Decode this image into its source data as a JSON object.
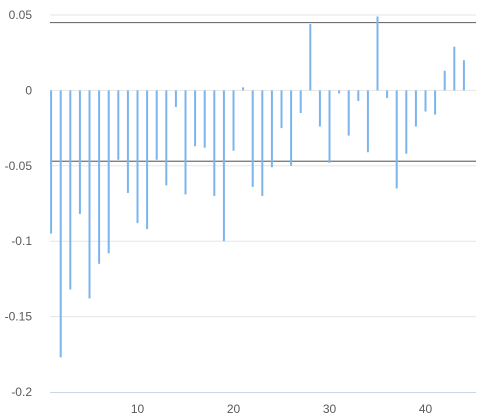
{
  "chart_data": {
    "type": "bar",
    "title": "",
    "xlabel": "",
    "ylabel": "",
    "x": [
      1,
      2,
      3,
      4,
      5,
      6,
      7,
      8,
      9,
      10,
      11,
      12,
      13,
      14,
      15,
      16,
      17,
      18,
      19,
      20,
      21,
      22,
      23,
      24,
      25,
      26,
      27,
      28,
      29,
      30,
      31,
      32,
      33,
      34,
      35,
      36,
      37,
      38,
      39,
      40,
      41,
      42,
      43,
      44,
      45
    ],
    "values": [
      -0.095,
      -0.177,
      -0.132,
      -0.082,
      -0.138,
      -0.115,
      -0.108,
      -0.046,
      -0.068,
      -0.088,
      -0.092,
      -0.046,
      -0.063,
      -0.011,
      -0.069,
      -0.037,
      -0.038,
      -0.07,
      -0.1,
      -0.04,
      0.002,
      -0.064,
      -0.07,
      -0.051,
      -0.025,
      -0.05,
      -0.015,
      0.044,
      -0.024,
      -0.048,
      -0.002,
      -0.03,
      -0.007,
      -0.041,
      0.049,
      -0.005,
      -0.065,
      -0.042,
      -0.024,
      -0.014,
      -0.016,
      0.013,
      0.029,
      0.02,
      0.0
    ],
    "xlim": [
      0,
      45
    ],
    "ylim": [
      -0.2,
      0.05
    ],
    "xticks": [
      10,
      20,
      30,
      40
    ],
    "yticks": [
      0.05,
      0,
      -0.05,
      -0.1,
      -0.15,
      -0.2
    ],
    "ytick_labels": [
      "0.05",
      "0",
      "-0.05",
      "-0.1",
      "-0.15",
      "-0.2"
    ],
    "reference_lines": [
      0.045,
      -0.047
    ],
    "grid": true,
    "colors": {
      "bar": "#7cb5ec",
      "reference_line": "#707070",
      "grid": "#e6e6e6",
      "axis": "#ccd6eb"
    }
  }
}
